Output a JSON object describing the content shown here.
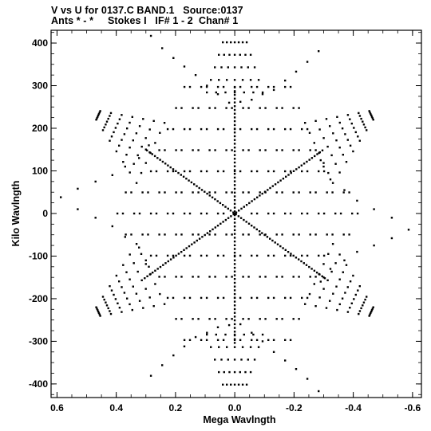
{
  "header": {
    "line1": "V vs U for 0137.C BAND.1   Source:0137",
    "line2": "Ants * - *     Stokes I   IF# 1 - 2  Chan# 1"
  },
  "colors": {
    "points": "#000000",
    "frame": "#000000",
    "background": "#ffffff"
  },
  "chart_data": {
    "type": "scatter",
    "title": "V vs U for 0137.C BAND.1   Source:0137",
    "subtitle": "Ants * - *     Stokes I   IF# 1 - 2  Chan# 1",
    "xlabel": "Mega Wavlngth",
    "ylabel": "Kilo Wavlngth",
    "x_reversed": true,
    "xlim": [
      0.62,
      -0.63
    ],
    "ylim": [
      -432,
      430
    ],
    "xticks": [
      0.6,
      0.4,
      0.2,
      0.0,
      -0.2,
      -0.4,
      -0.6
    ],
    "xtick_labels": [
      "0.6",
      "0.4",
      "0.2",
      "0.0",
      "-0.2",
      "-0.4",
      "-0.6"
    ],
    "yticks": [
      400,
      300,
      200,
      100,
      0,
      -100,
      -200,
      -300,
      -400
    ],
    "ytick_labels": [
      "400",
      "300",
      "200",
      "100",
      "0",
      "-100",
      "-200",
      "-300",
      "-400"
    ],
    "grid": false,
    "pattern": "six-arm star of uv-tracks with hexagonal lattice interior",
    "lattice": {
      "a1": [
        -0.0566,
        0
      ],
      "a2": [
        -0.0283,
        49.5
      ],
      "arm_directions": [
        [
          0,
          1
        ],
        [
          -0.866,
          0.5
        ],
        [
          -0.866,
          -0.5
        ],
        [
          0,
          -1
        ],
        [
          0.866,
          -0.5
        ],
        [
          0.866,
          0.5
        ]
      ],
      "arm_inner": 0.43,
      "arm_outer": 0.566,
      "hexagon_radius": 0.57
    },
    "series": [
      {
        "points": [
          [
            0.283,
            417
          ],
          [
            0.245,
            388
          ],
          [
            0.207,
            365
          ],
          [
            0.17,
            345
          ],
          [
            0.132,
            325
          ],
          [
            0.094,
            300
          ],
          [
            0.057,
            280
          ],
          [
            0.019,
            260
          ],
          [
            -0.283,
            381
          ],
          [
            -0.245,
            356
          ],
          [
            -0.207,
            333
          ],
          [
            -0.17,
            312
          ],
          [
            -0.132,
            290
          ],
          [
            -0.094,
            280
          ],
          [
            -0.057,
            267
          ],
          [
            -0.019,
            262
          ],
          [
            0.283,
            -381
          ],
          [
            0.245,
            -356
          ],
          [
            0.207,
            -333
          ],
          [
            0.17,
            -312
          ],
          [
            0.132,
            -290
          ],
          [
            0.094,
            -280
          ],
          [
            0.057,
            -267
          ],
          [
            0.019,
            -262
          ],
          [
            -0.283,
            -417
          ],
          [
            -0.245,
            -388
          ],
          [
            -0.207,
            -365
          ],
          [
            -0.17,
            -345
          ],
          [
            -0.132,
            -325
          ],
          [
            -0.094,
            -300
          ],
          [
            -0.057,
            -280
          ],
          [
            -0.019,
            -260
          ],
          [
            0.587,
            38
          ],
          [
            0.53,
            58
          ],
          [
            0.47,
            75
          ],
          [
            0.413,
            90
          ],
          [
            0.37,
            110
          ],
          [
            0.323,
            130
          ],
          [
            0.3,
            150
          ],
          [
            0.29,
            160
          ],
          [
            -0.587,
            -38
          ],
          [
            -0.53,
            -58
          ],
          [
            -0.47,
            -75
          ],
          [
            -0.413,
            -90
          ],
          [
            -0.37,
            -110
          ],
          [
            -0.323,
            -130
          ],
          [
            -0.3,
            -150
          ],
          [
            -0.29,
            -160
          ],
          [
            0.53,
            10
          ],
          [
            0.47,
            -10
          ],
          [
            0.413,
            -30
          ],
          [
            0.37,
            -55
          ],
          [
            0.323,
            -80
          ],
          [
            0.3,
            -110
          ],
          [
            0.29,
            -125
          ],
          [
            -0.53,
            -10
          ],
          [
            -0.47,
            10
          ],
          [
            -0.413,
            30
          ],
          [
            -0.37,
            55
          ],
          [
            -0.323,
            80
          ],
          [
            -0.3,
            110
          ],
          [
            -0.29,
            125
          ]
        ]
      }
    ]
  }
}
